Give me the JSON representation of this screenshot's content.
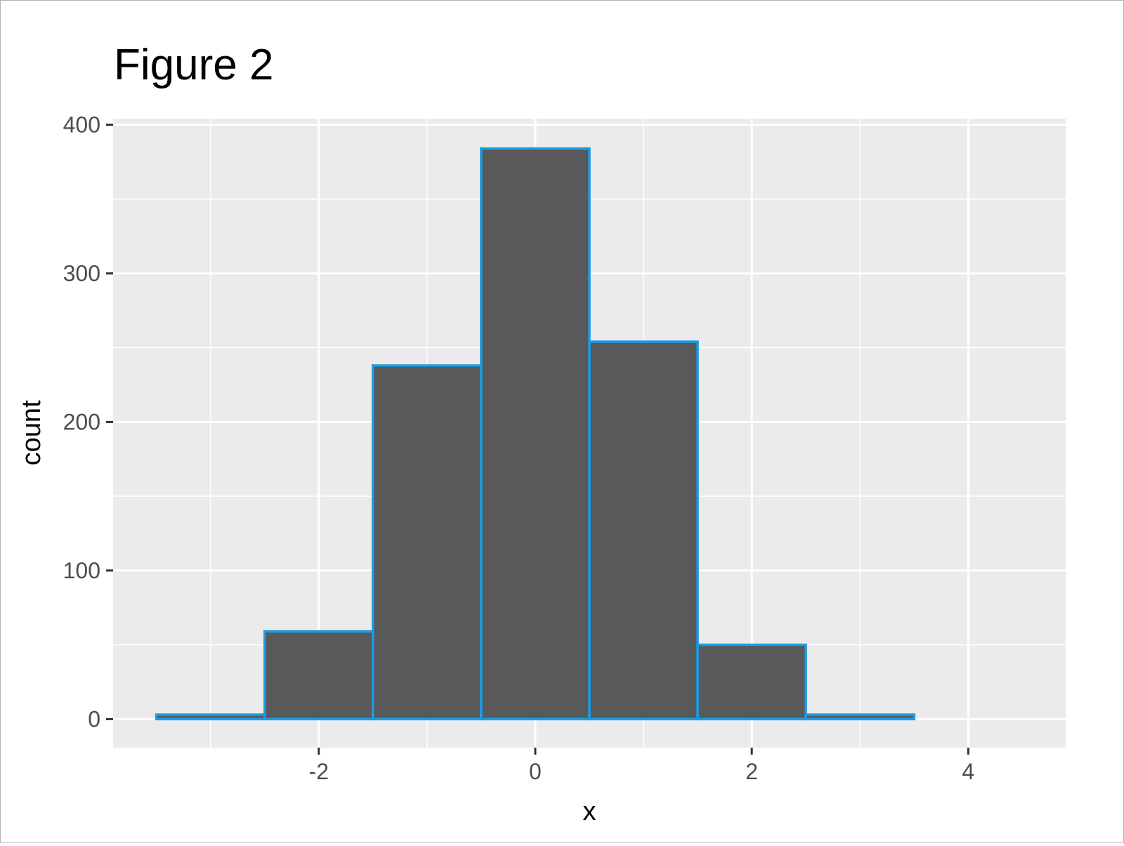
{
  "chart_data": {
    "type": "bar",
    "title": "Figure 2",
    "xlabel": "x",
    "ylabel": "count",
    "bins": [
      {
        "x0": -3.5,
        "x1": -2.5,
        "count": 3
      },
      {
        "x0": -2.5,
        "x1": -1.5,
        "count": 59
      },
      {
        "x0": -1.5,
        "x1": -0.5,
        "count": 238
      },
      {
        "x0": -0.5,
        "x1": 0.5,
        "count": 384
      },
      {
        "x0": 0.5,
        "x1": 1.5,
        "count": 254
      },
      {
        "x0": 1.5,
        "x1": 2.5,
        "count": 50
      },
      {
        "x0": 2.5,
        "x1": 3.5,
        "count": 3
      },
      {
        "x0": 3.5,
        "x1": 4.5,
        "count": 0
      }
    ],
    "xlim": [
      -3.9,
      4.9
    ],
    "ylim": [
      -19.2,
      404
    ],
    "x_ticks": [
      -2,
      0,
      2,
      4
    ],
    "x_tick_labels": [
      "-2",
      "0",
      "2",
      "4"
    ],
    "y_ticks": [
      0,
      100,
      200,
      300,
      400
    ],
    "y_tick_labels": [
      "0",
      "100",
      "200",
      "300",
      "400"
    ],
    "grid": true,
    "legend": "none",
    "colors": {
      "fill": "#595959",
      "outline": "#1c9be3",
      "panel": "#ebebeb",
      "grid": "#ffffff"
    }
  }
}
